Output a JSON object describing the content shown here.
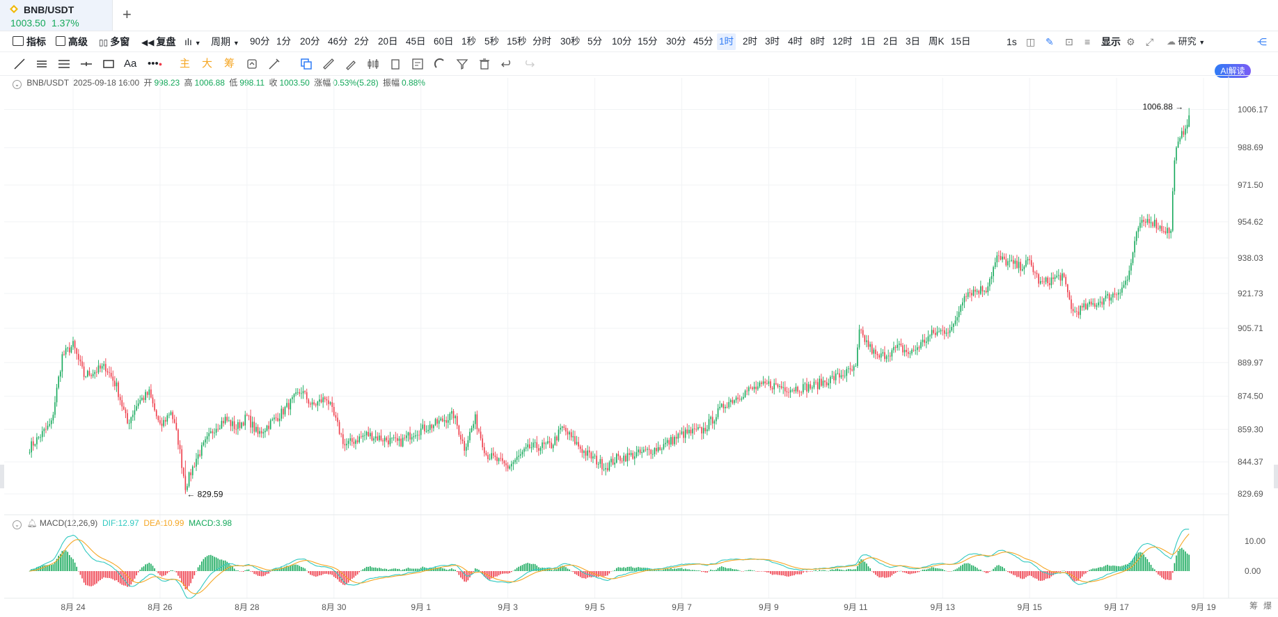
{
  "tab": {
    "symbol": "BNB/USDT",
    "price": "1003.50",
    "change": "1.37%",
    "add": "+"
  },
  "toolbar": {
    "indicator": "指标",
    "advanced": "高级",
    "multi_window": "多窗",
    "replay": "复盘",
    "period": "周期",
    "periods": [
      "90分",
      "1分",
      "20分",
      "46分",
      "2分",
      "20日",
      "45日",
      "60日",
      "1秒",
      "5秒",
      "15秒",
      "分时",
      "30秒",
      "5分",
      "10分",
      "15分",
      "30分",
      "45分",
      "1时",
      "2时",
      "3时",
      "4时",
      "8时",
      "12时",
      "1日",
      "2日",
      "3日",
      "周K",
      "15日"
    ],
    "active_period": "1时",
    "interval": "1s",
    "display": "显示",
    "research": "研究",
    "ai": "AI解读"
  },
  "draw_toolbar": {
    "main": "主",
    "big": "大",
    "chip": "筹",
    "text_tool": "Aa"
  },
  "info": {
    "symbol": "BNB/USDT",
    "datetime": "2025-09-18 16:00",
    "open_label": "开",
    "open": "998.23",
    "high_label": "高",
    "high": "1006.88",
    "low_label": "低",
    "low": "998.11",
    "close_label": "收",
    "close": "1003.50",
    "change_label": "涨幅",
    "change": "0.53%(5.28)",
    "amp_label": "振幅",
    "amp": "0.88%"
  },
  "macd_info": {
    "name": "MACD(12,26,9)",
    "dif": "DIF:12.97",
    "dea": "DEA:10.99",
    "macd": "MACD:3.98"
  },
  "corner": {
    "a": "筹",
    "b": "爆"
  },
  "colors": {
    "up": "#14a85a",
    "down": "#ee3a48",
    "dif": "#2fc9c0",
    "dea": "#f5a623",
    "active": "#2f7bf5"
  },
  "chart_data": {
    "type": "candlestick",
    "title": "BNB/USDT",
    "interval": "1h",
    "y_ticks": [
      1006.17,
      988.69,
      971.5,
      954.62,
      938.03,
      921.73,
      905.71,
      889.97,
      874.5,
      859.3,
      844.37,
      829.69
    ],
    "ylim": [
      823,
      1012
    ],
    "x_ticks": [
      "8月 24",
      "8月 26",
      "8月 28",
      "8月 30",
      "9月 1",
      "9月 3",
      "9月 5",
      "9月 7",
      "9月 9",
      "9月 11",
      "9月 13",
      "9月 15",
      "9月 17",
      "9月 19"
    ],
    "max_label": "1006.88 →",
    "min_label": "← 829.59",
    "key_prices": [
      [
        "8-23 00:00",
        851
      ],
      [
        "8-23 12:00",
        862
      ],
      [
        "8-23 18:00",
        893
      ],
      [
        "8-24 00:00",
        898
      ],
      [
        "8-24 06:00",
        884
      ],
      [
        "8-24 18:00",
        888
      ],
      [
        "8-25 00:00",
        879
      ],
      [
        "8-25 06:00",
        862
      ],
      [
        "8-25 12:00",
        872
      ],
      [
        "8-25 18:00",
        876
      ],
      [
        "8-26 00:00",
        860
      ],
      [
        "8-26 06:00",
        868
      ],
      [
        "8-26 10:00",
        854
      ],
      [
        "8-26 14:00",
        833
      ],
      [
        "8-26 20:00",
        846
      ],
      [
        "8-27 06:00",
        860
      ],
      [
        "8-27 12:00",
        864
      ],
      [
        "8-27 18:00",
        860
      ],
      [
        "8-28 00:00",
        865
      ],
      [
        "8-28 06:00",
        857
      ],
      [
        "8-28 18:00",
        866
      ],
      [
        "8-29 06:00",
        877
      ],
      [
        "8-29 12:00",
        870
      ],
      [
        "8-29 20:00",
        874
      ],
      [
        "8-30 06:00",
        852
      ],
      [
        "8-30 18:00",
        857
      ],
      [
        "8-31 12:00",
        853
      ],
      [
        "8-31 20:00",
        858
      ],
      [
        "9-1 06:00",
        861
      ],
      [
        "9-1 18:00",
        866
      ],
      [
        "9-2 00:00",
        851
      ],
      [
        "9-2 06:00",
        864
      ],
      [
        "9-2 12:00",
        848
      ],
      [
        "9-3 00:00",
        842
      ],
      [
        "9-3 12:00",
        851
      ],
      [
        "9-4 00:00",
        852
      ],
      [
        "9-4 06:00",
        860
      ],
      [
        "9-4 18:00",
        849
      ],
      [
        "9-5 06:00",
        842
      ],
      [
        "9-5 12:00",
        846
      ],
      [
        "9-6 00:00",
        848
      ],
      [
        "9-6 12:00",
        851
      ],
      [
        "9-7 00:00",
        857
      ],
      [
        "9-7 12:00",
        859
      ],
      [
        "9-8 00:00",
        871
      ],
      [
        "9-8 12:00",
        877
      ],
      [
        "9-9 00:00",
        880
      ],
      [
        "9-9 12:00",
        878
      ],
      [
        "9-10 00:00",
        879
      ],
      [
        "9-10 12:00",
        883
      ],
      [
        "9-11 00:00",
        887
      ],
      [
        "9-11 02:00",
        904
      ],
      [
        "9-11 12:00",
        892
      ],
      [
        "9-12 00:00",
        897
      ],
      [
        "9-12 06:00",
        894
      ],
      [
        "9-12 18:00",
        903
      ],
      [
        "9-13 06:00",
        906
      ],
      [
        "9-13 12:00",
        922
      ],
      [
        "9-14 00:00",
        924
      ],
      [
        "9-14 06:00",
        938
      ],
      [
        "9-14 18:00",
        934
      ],
      [
        "9-15 00:00",
        936
      ],
      [
        "9-15 06:00",
        926
      ],
      [
        "9-15 18:00",
        930
      ],
      [
        "9-16 00:00",
        913
      ],
      [
        "9-16 12:00",
        917
      ],
      [
        "9-17 00:00",
        922
      ],
      [
        "9-17 06:00",
        928
      ],
      [
        "9-17 12:00",
        952
      ],
      [
        "9-17 18:00",
        956
      ],
      [
        "9-18 00:00",
        952
      ],
      [
        "9-18 06:00",
        950
      ],
      [
        "9-18 08:00",
        985
      ],
      [
        "9-18 16:00",
        1003.5
      ]
    ],
    "macd": {
      "dif": 12.97,
      "dea": 10.99,
      "hist": 3.98,
      "y_ticks": [
        10.0,
        0.0
      ]
    }
  }
}
